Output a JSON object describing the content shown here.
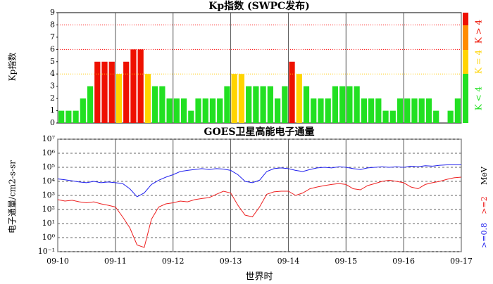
{
  "chart_data": [
    {
      "type": "bar",
      "title": "Kp指数 (SWPC发布)",
      "ylabel": "Kp指数",
      "values": [
        1,
        1,
        1,
        2,
        3,
        5,
        5,
        5,
        4,
        5,
        6,
        6,
        4,
        3,
        3,
        2,
        2,
        2,
        1,
        2,
        2,
        2,
        2,
        3,
        4,
        4,
        3,
        3,
        3,
        3,
        2,
        3,
        5,
        4,
        3,
        2,
        2,
        2,
        3,
        3,
        3,
        3,
        2,
        2,
        2,
        1,
        1,
        2,
        2,
        2,
        2,
        2,
        1,
        0,
        1,
        2
      ],
      "colors": [
        "#22e022",
        "#22e022",
        "#22e022",
        "#22e022",
        "#22e022",
        "#ee1100",
        "#ee1100",
        "#ee1100",
        "#ffd400",
        "#ee1100",
        "#ee1100",
        "#ee1100",
        "#ffd400",
        "#22e022",
        "#22e022",
        "#22e022",
        "#22e022",
        "#22e022",
        "#22e022",
        "#22e022",
        "#22e022",
        "#22e022",
        "#22e022",
        "#22e022",
        "#ffd400",
        "#ffd400",
        "#22e022",
        "#22e022",
        "#22e022",
        "#22e022",
        "#22e022",
        "#22e022",
        "#ee1100",
        "#ffd400",
        "#22e022",
        "#22e022",
        "#22e022",
        "#22e022",
        "#22e022",
        "#22e022",
        "#22e022",
        "#22e022",
        "#22e022",
        "#22e022",
        "#22e022",
        "#22e022",
        "#22e022",
        "#22e022",
        "#22e022",
        "#22e022",
        "#22e022",
        "#22e022",
        "#22e022",
        "#22e022",
        "#22e022",
        "#22e022"
      ],
      "ylim": [
        0,
        9
      ],
      "yticks": [
        0,
        1,
        2,
        3,
        4,
        5,
        6,
        7,
        8,
        9
      ],
      "hlines": [
        {
          "value": 4,
          "color": "#ffc800"
        },
        {
          "value": 6,
          "color": "#ff0000"
        },
        {
          "value": 8,
          "color": "#ff0000"
        }
      ],
      "legend": [
        {
          "label": "K < 4",
          "color": "#22e022"
        },
        {
          "label": "K = 4",
          "color": "#ffd400"
        },
        {
          "label": "K > 4",
          "color": "#ee1100"
        }
      ]
    },
    {
      "type": "line",
      "title": "GOES卫星高能电子通量",
      "ylabel": "电子通量/cm2-s-sr",
      "xlabel": "世界时",
      "log_y": true,
      "unit": "MeV",
      "x": [
        0,
        0.125,
        0.25,
        0.375,
        0.5,
        0.625,
        0.75,
        0.875,
        1,
        1.125,
        1.25,
        1.375,
        1.5,
        1.625,
        1.75,
        1.875,
        2,
        2.125,
        2.25,
        2.375,
        2.5,
        2.625,
        2.75,
        2.875,
        3,
        3.125,
        3.25,
        3.375,
        3.5,
        3.625,
        3.75,
        3.875,
        4,
        4.125,
        4.25,
        4.375,
        4.5,
        4.625,
        4.75,
        4.875,
        5,
        5.125,
        5.25,
        5.375,
        5.5,
        5.625,
        5.75,
        5.875,
        6,
        6.125,
        6.25,
        6.375,
        6.5,
        6.625,
        6.75,
        6.875,
        7
      ],
      "series": [
        {
          "name": ">=0.8",
          "color": "#2020ee",
          "values": [
            15000,
            13000,
            11000,
            9000,
            8000,
            10000,
            8000,
            9000,
            8000,
            7000,
            3000,
            800,
            1500,
            6000,
            12000,
            20000,
            30000,
            50000,
            60000,
            70000,
            80000,
            70000,
            80000,
            75000,
            60000,
            30000,
            10000,
            8000,
            12000,
            50000,
            80000,
            90000,
            80000,
            60000,
            50000,
            70000,
            90000,
            100000,
            90000,
            110000,
            100000,
            80000,
            70000,
            90000,
            100000,
            110000,
            100000,
            110000,
            100000,
            120000,
            110000,
            130000,
            120000,
            140000,
            150000,
            150000,
            150000
          ]
        },
        {
          "name": ">=2",
          "color": "#ee2020",
          "values": [
            500,
            400,
            450,
            350,
            300,
            350,
            250,
            200,
            150,
            30,
            5,
            0.3,
            0.2,
            20,
            150,
            250,
            300,
            400,
            350,
            500,
            600,
            700,
            1200,
            2000,
            1500,
            200,
            40,
            30,
            150,
            1200,
            1800,
            2000,
            2000,
            1000,
            1500,
            3000,
            4000,
            5000,
            6000,
            7000,
            6000,
            3000,
            2500,
            5000,
            7000,
            10000,
            12000,
            10000,
            8000,
            4000,
            3000,
            6000,
            8000,
            10000,
            14000,
            18000,
            20000
          ]
        }
      ],
      "xlim": [
        0,
        7
      ],
      "xticks": [
        {
          "value": 0,
          "label": "09-10"
        },
        {
          "value": 1,
          "label": "09-11"
        },
        {
          "value": 2,
          "label": "09-12"
        },
        {
          "value": 3,
          "label": "09-13"
        },
        {
          "value": 4,
          "label": "09-14"
        },
        {
          "value": 5,
          "label": "09-15"
        },
        {
          "value": 6,
          "label": "09-16"
        },
        {
          "value": 7,
          "label": "09-17"
        }
      ],
      "ylim": [
        0.1,
        10000000
      ],
      "yticks": [
        {
          "value": 0.1,
          "label": "10⁻¹"
        },
        {
          "value": 1,
          "label": "10⁰"
        },
        {
          "value": 10,
          "label": "10¹"
        },
        {
          "value": 100,
          "label": "10²"
        },
        {
          "value": 1000,
          "label": "10³"
        },
        {
          "value": 10000,
          "label": "10⁴"
        },
        {
          "value": 100000,
          "label": "10⁵"
        },
        {
          "value": 1000000,
          "label": "10⁶"
        },
        {
          "value": 10000000,
          "label": "10⁷"
        }
      ],
      "grid": true
    }
  ]
}
